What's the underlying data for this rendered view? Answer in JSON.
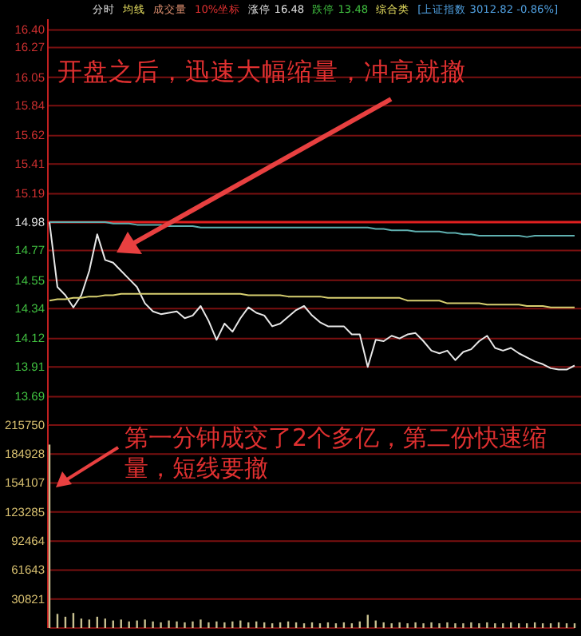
{
  "chart_data": [
    {
      "type": "line",
      "categories": [
        null,
        null,
        null,
        null,
        null,
        null,
        null,
        null,
        null,
        null,
        null,
        null,
        null,
        null,
        null,
        null,
        null,
        null,
        null,
        null,
        null,
        null,
        null,
        null,
        null,
        null,
        null,
        null,
        null,
        null,
        null,
        null,
        null,
        null,
        null,
        null,
        null,
        null,
        null,
        null,
        null,
        null,
        null,
        null,
        null,
        null,
        null,
        null,
        null,
        null,
        null,
        null,
        null,
        null,
        null,
        null,
        null,
        null,
        null,
        null,
        null,
        null,
        null,
        null,
        null,
        null,
        null
      ],
      "series": [
        {
          "color": "#e8e8e8",
          "values": [
            14.98,
            14.5,
            14.44,
            14.35,
            14.44,
            14.62,
            14.89,
            14.7,
            14.68,
            14.62,
            14.56,
            14.5,
            14.38,
            14.32,
            14.3,
            14.31,
            14.32,
            14.27,
            14.29,
            14.36,
            14.25,
            14.11,
            14.23,
            14.17,
            14.27,
            14.35,
            14.31,
            14.29,
            14.21,
            14.23,
            14.28,
            14.33,
            14.36,
            14.29,
            14.24,
            14.21,
            14.21,
            14.21,
            14.15,
            14.15,
            13.91,
            14.11,
            14.1,
            14.14,
            14.12,
            14.15,
            14.16,
            14.1,
            14.03,
            14.01,
            14.03,
            13.96,
            14.02,
            14.04,
            14.1,
            14.14,
            14.05,
            14.03,
            14.05,
            14.01,
            13.98,
            13.95,
            13.93,
            13.9,
            13.89,
            13.89,
            13.92
          ]
        },
        {
          "color": "#d8d070",
          "values": [
            14.4,
            14.41,
            14.41,
            14.42,
            14.42,
            14.43,
            14.43,
            14.44,
            14.44,
            14.45,
            14.45,
            14.45,
            14.45,
            14.45,
            14.45,
            14.45,
            14.45,
            14.45,
            14.45,
            14.45,
            14.45,
            14.45,
            14.45,
            14.45,
            14.45,
            14.44,
            14.44,
            14.44,
            14.44,
            14.44,
            14.43,
            14.43,
            14.43,
            14.43,
            14.43,
            14.42,
            14.42,
            14.42,
            14.42,
            14.42,
            14.42,
            14.42,
            14.42,
            14.42,
            14.42,
            14.4,
            14.4,
            14.4,
            14.4,
            14.4,
            14.38,
            14.38,
            14.38,
            14.38,
            14.38,
            14.37,
            14.37,
            14.37,
            14.37,
            14.37,
            14.36,
            14.36,
            14.36,
            14.35,
            14.35,
            14.35,
            14.35
          ]
        },
        {
          "color": "#5fb0b0",
          "values": [
            14.98,
            14.98,
            14.98,
            14.98,
            14.98,
            14.98,
            14.98,
            14.98,
            14.97,
            14.97,
            14.97,
            14.96,
            14.96,
            14.96,
            14.96,
            14.95,
            14.95,
            14.95,
            14.95,
            14.94,
            14.94,
            14.94,
            14.94,
            14.94,
            14.94,
            14.94,
            14.94,
            14.94,
            14.94,
            14.94,
            14.94,
            14.94,
            14.94,
            14.94,
            14.94,
            14.94,
            14.94,
            14.94,
            14.94,
            14.94,
            14.94,
            14.93,
            14.93,
            14.92,
            14.92,
            14.92,
            14.91,
            14.91,
            14.91,
            14.91,
            14.9,
            14.9,
            14.89,
            14.89,
            14.88,
            14.88,
            14.88,
            14.88,
            14.88,
            14.88,
            14.87,
            14.88,
            14.88,
            14.88,
            14.88,
            14.88,
            14.88
          ]
        }
      ],
      "ylim": [
        13.48,
        16.48
      ],
      "yticks": [
        {
          "value": 16.4,
          "label": "16.40"
        },
        16.27,
        16.05,
        15.84,
        15.62,
        15.41,
        15.19,
        14.98,
        14.77,
        14.55,
        14.34,
        14.12,
        13.91,
        13.69
      ],
      "grid": "y",
      "tick_labels": "y",
      "ref_lines": [
        {
          "axis": "y",
          "value": 14.98,
          "color": "#e02020"
        }
      ],
      "annotations": [
        "分时",
        "均线",
        "成交量",
        "10%坐标",
        "涨停 16.48",
        "跌停 13.48",
        "综合类",
        "[上证指数 3012.82 -0.86%]",
        "开盘之后，迅速大幅缩量，冲高就撤"
      ]
    },
    {
      "type": "bar",
      "categories": [
        null,
        null,
        null,
        null,
        null,
        null,
        null,
        null,
        null,
        null,
        null,
        null,
        null,
        null,
        null,
        null,
        null,
        null,
        null,
        null,
        null,
        null,
        null,
        null,
        null,
        null,
        null,
        null,
        null,
        null,
        null,
        null,
        null,
        null,
        null,
        null,
        null,
        null,
        null,
        null,
        null,
        null,
        null,
        null,
        null,
        null,
        null,
        null,
        null,
        null,
        null,
        null,
        null,
        null,
        null,
        null,
        null,
        null,
        null,
        null,
        null,
        null,
        null,
        null,
        null,
        null,
        null
      ],
      "values": [
        195000,
        15000,
        12000,
        16000,
        10000,
        9000,
        12000,
        10000,
        8000,
        9000,
        7000,
        8000,
        9000,
        7000,
        6000,
        8000,
        7000,
        6000,
        7000,
        9000,
        6000,
        7000,
        6000,
        7000,
        8000,
        6000,
        7000,
        6000,
        5000,
        6000,
        7000,
        6000,
        5000,
        6000,
        5000,
        6000,
        5000,
        6000,
        5000,
        7000,
        14000,
        8000,
        6000,
        5000,
        6000,
        5000,
        6000,
        5000,
        6000,
        5000,
        6000,
        5000,
        5000,
        6000,
        5000,
        6000,
        5000,
        5000,
        6000,
        5000,
        5000,
        6000,
        5000,
        5000,
        6000,
        5000,
        5000
      ],
      "color": "#c8c090",
      "ylim": [
        0,
        215750
      ],
      "yticks": [
        30821,
        61643,
        92464,
        123285,
        154107,
        184928,
        215750
      ],
      "grid": "y",
      "tick_labels": "y",
      "annotations": [
        "第一分钟成交了2个多亿，第二份快速缩量，短线要撤"
      ]
    }
  ]
}
